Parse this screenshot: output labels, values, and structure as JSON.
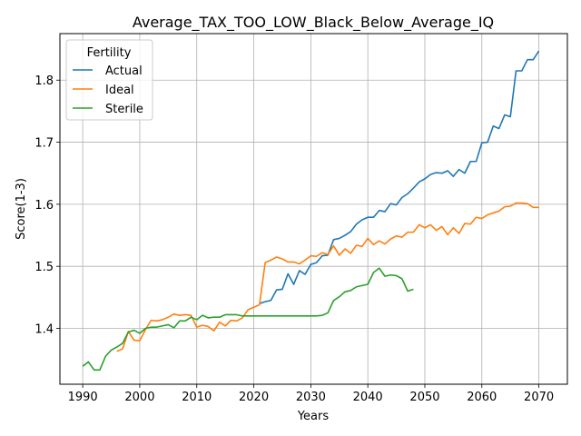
{
  "chart_data": {
    "type": "line",
    "title": "Average_TAX_TOO_LOW_Black_Below_Average_IQ",
    "xlabel": "Years",
    "ylabel": "Score(1-3)",
    "xlim": [
      1986,
      2075
    ],
    "ylim": [
      1.31,
      1.875
    ],
    "x_ticks": [
      1990,
      2000,
      2010,
      2020,
      2030,
      2040,
      2050,
      2060,
      2070
    ],
    "y_ticks": [
      1.4,
      1.5,
      1.6,
      1.7,
      1.8
    ],
    "grid": true,
    "legend": {
      "title": "Fertility",
      "placement": "top-left"
    },
    "series": [
      {
        "name": "Actual",
        "color": "#1f77b4",
        "start_year": 2021,
        "values": [
          1.44,
          1.443,
          1.445,
          1.462,
          1.463,
          1.488,
          1.471,
          1.493,
          1.487,
          1.503,
          1.506,
          1.517,
          1.518,
          1.543,
          1.545,
          1.55,
          1.556,
          1.568,
          1.575,
          1.579,
          1.579,
          1.59,
          1.588,
          1.601,
          1.599,
          1.611,
          1.617,
          1.626,
          1.636,
          1.641,
          1.648,
          1.651,
          1.65,
          1.654,
          1.645,
          1.656,
          1.65,
          1.669,
          1.669,
          1.699,
          1.7,
          1.726,
          1.722,
          1.744,
          1.741,
          1.815,
          1.815,
          1.833,
          1.833,
          1.847
        ]
      },
      {
        "name": "Ideal",
        "color": "#ff7f0e",
        "start_year": 1996,
        "values": [
          1.363,
          1.367,
          1.395,
          1.381,
          1.38,
          1.398,
          1.413,
          1.412,
          1.414,
          1.418,
          1.423,
          1.421,
          1.422,
          1.421,
          1.402,
          1.405,
          1.403,
          1.396,
          1.41,
          1.404,
          1.413,
          1.412,
          1.417,
          1.43,
          1.434,
          1.438,
          1.506,
          1.51,
          1.515,
          1.512,
          1.507,
          1.507,
          1.504,
          1.51,
          1.517,
          1.516,
          1.522,
          1.519,
          1.533,
          1.518,
          1.528,
          1.521,
          1.534,
          1.532,
          1.545,
          1.535,
          1.541,
          1.536,
          1.544,
          1.549,
          1.547,
          1.555,
          1.555,
          1.567,
          1.562,
          1.567,
          1.558,
          1.564,
          1.551,
          1.562,
          1.553,
          1.569,
          1.568,
          1.579,
          1.577,
          1.583,
          1.586,
          1.589,
          1.596,
          1.597,
          1.602,
          1.602,
          1.601,
          1.595,
          1.595
        ]
      },
      {
        "name": "Sterile",
        "color": "#2ca02c",
        "start_year": 1990,
        "values": [
          1.339,
          1.346,
          1.333,
          1.333,
          1.355,
          1.365,
          1.37,
          1.376,
          1.394,
          1.397,
          1.392,
          1.4,
          1.402,
          1.402,
          1.404,
          1.406,
          1.401,
          1.412,
          1.412,
          1.418,
          1.414,
          1.421,
          1.417,
          1.418,
          1.418,
          1.422,
          1.422,
          1.422,
          1.42,
          1.42,
          1.42,
          1.42,
          1.42,
          1.42,
          1.42,
          1.42,
          1.42,
          1.42,
          1.42,
          1.42,
          1.42,
          1.42,
          1.421,
          1.425,
          1.445,
          1.451,
          1.459,
          1.461,
          1.467,
          1.469,
          1.471,
          1.49,
          1.497,
          1.484,
          1.486,
          1.485,
          1.48,
          1.46,
          1.463
        ]
      }
    ]
  }
}
